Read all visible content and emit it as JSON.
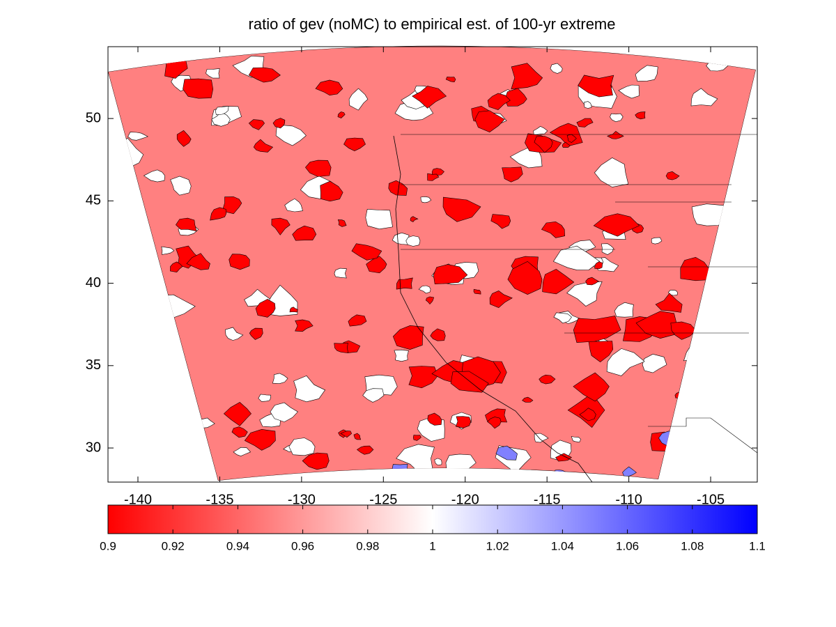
{
  "chart_data": {
    "type": "map",
    "title": "ratio of gev (noMC) to empirical est. of 100-yr extreme",
    "xlim": [
      -141.83,
      -102.15
    ],
    "ylim": [
      27.93,
      54.36
    ],
    "xticks": [
      -140,
      -135,
      -130,
      -125,
      -120,
      -115,
      -110,
      -105
    ],
    "yticks": [
      30,
      35,
      40,
      45,
      50
    ],
    "fill_color": "#ff8080",
    "colorbar": {
      "clim": [
        0.9,
        1.1
      ],
      "ticks": [
        0.9,
        0.92,
        0.94,
        0.96,
        0.98,
        1,
        1.02,
        1.04,
        1.06,
        1.08,
        1.1
      ],
      "colors": [
        "#ff0000",
        "#ffffff",
        "#0000ff"
      ]
    }
  }
}
